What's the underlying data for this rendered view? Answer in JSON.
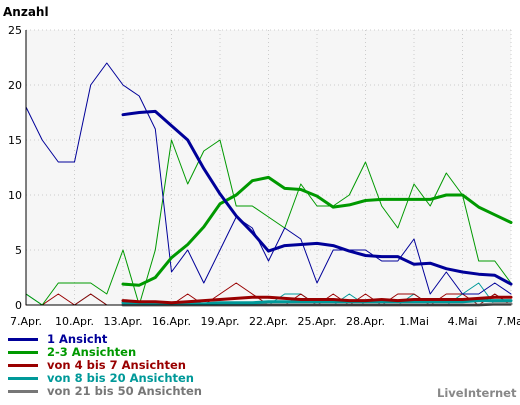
{
  "chart_data": {
    "type": "line",
    "ylabel": "Anzahl",
    "ylim": [
      0,
      25
    ],
    "yticks": [
      "0",
      "5",
      "10",
      "15",
      "20",
      "25"
    ],
    "xticks": [
      "7.Apr.",
      "10.Apr.",
      "13.Apr.",
      "16.Apr.",
      "19.Apr.",
      "22.Apr.",
      "25.Apr.",
      "28.Apr.",
      "1.Mai",
      "4.Mai",
      "7.Mai"
    ],
    "x_count": 31,
    "grid": true,
    "background_color": "#f6f6f6",
    "series": [
      {
        "name": "1 Ansicht",
        "color": "#000099",
        "daily": [
          18,
          15,
          13,
          13,
          20,
          22,
          20,
          19,
          16,
          3,
          5,
          2,
          5,
          8,
          7,
          4,
          7,
          6,
          2,
          5,
          5,
          5,
          4,
          4,
          6,
          1,
          3,
          1,
          1,
          2,
          1
        ],
        "average": [
          null,
          null,
          null,
          null,
          null,
          null,
          17.3,
          17.5,
          17.6,
          16.3,
          15,
          12.4,
          10.1,
          8.1,
          6.6,
          4.9,
          5.4,
          5.5,
          5.6,
          5.4,
          4.9,
          4.5,
          4.4,
          4.4,
          3.7,
          3.8,
          3.3,
          3.0,
          2.8,
          2.7,
          1.9
        ]
      },
      {
        "name": "2-3 Ansichten",
        "color": "#009900",
        "daily": [
          1,
          0,
          2,
          2,
          2,
          1,
          5,
          0,
          5,
          15,
          11,
          14,
          15,
          9,
          9,
          8,
          7,
          11,
          9,
          9,
          10,
          13,
          9,
          7,
          11,
          9,
          12,
          10,
          4,
          4,
          2
        ],
        "average": [
          null,
          null,
          null,
          null,
          null,
          null,
          1.9,
          1.8,
          2.5,
          4.3,
          5.5,
          7.1,
          9.2,
          10,
          11.3,
          11.6,
          10.6,
          10.5,
          9.9,
          8.9,
          9.1,
          9.5,
          9.6,
          9.6,
          9.6,
          9.6,
          10.0,
          10.0,
          8.9,
          8.2,
          7.5
        ]
      },
      {
        "name": "von 4 bis 7 Ansichten",
        "color": "#990000",
        "daily": [
          0,
          0,
          1,
          0,
          1,
          0,
          0,
          0,
          0,
          0,
          1,
          0,
          1,
          2,
          1,
          0,
          0,
          1,
          0,
          1,
          0,
          1,
          0,
          1,
          1,
          0,
          1,
          1,
          0,
          1,
          0
        ],
        "average": [
          null,
          null,
          null,
          null,
          null,
          null,
          0.4,
          0.3,
          0.3,
          0.2,
          0.3,
          0.4,
          0.5,
          0.6,
          0.7,
          0.7,
          0.6,
          0.5,
          0.5,
          0.5,
          0.4,
          0.4,
          0.5,
          0.4,
          0.5,
          0.5,
          0.5,
          0.5,
          0.6,
          0.7,
          0.7
        ]
      },
      {
        "name": "von 8 bis 20 Ansichten",
        "color": "#009999",
        "daily": [
          1,
          0,
          0,
          0,
          1,
          0,
          0,
          0,
          0,
          0,
          0,
          0,
          0,
          0,
          0,
          0,
          1,
          1,
          0,
          0,
          1,
          0,
          0,
          0,
          1,
          0,
          0,
          1,
          2,
          0,
          0
        ],
        "average": [
          null,
          null,
          null,
          null,
          null,
          null,
          0.2,
          0.2,
          0.1,
          0.1,
          0.1,
          0.1,
          0.2,
          0.2,
          0.2,
          0.3,
          0.3,
          0.3,
          0.3,
          0.3,
          0.3,
          0.3,
          0.3,
          0.3,
          0.3,
          0.3,
          0.3,
          0.3,
          0.4,
          0.4,
          0.4
        ]
      },
      {
        "name": "von 21 bis 50 Ansichten",
        "color": "#777777",
        "daily": [
          0,
          0,
          0,
          0,
          0,
          0,
          0,
          0,
          0,
          0,
          0,
          0,
          0,
          0,
          0,
          0,
          0,
          0,
          0,
          0,
          0,
          0,
          0,
          0,
          0,
          0,
          0,
          0,
          0,
          1,
          0
        ],
        "average": [
          null,
          null,
          null,
          null,
          null,
          null,
          0,
          0,
          0,
          0,
          0,
          0,
          0,
          0,
          0,
          0,
          0,
          0,
          0,
          0,
          0,
          0,
          0,
          0,
          0,
          0,
          0,
          0,
          0,
          0.1,
          0.1
        ]
      }
    ]
  },
  "brand": "LiveInternet"
}
